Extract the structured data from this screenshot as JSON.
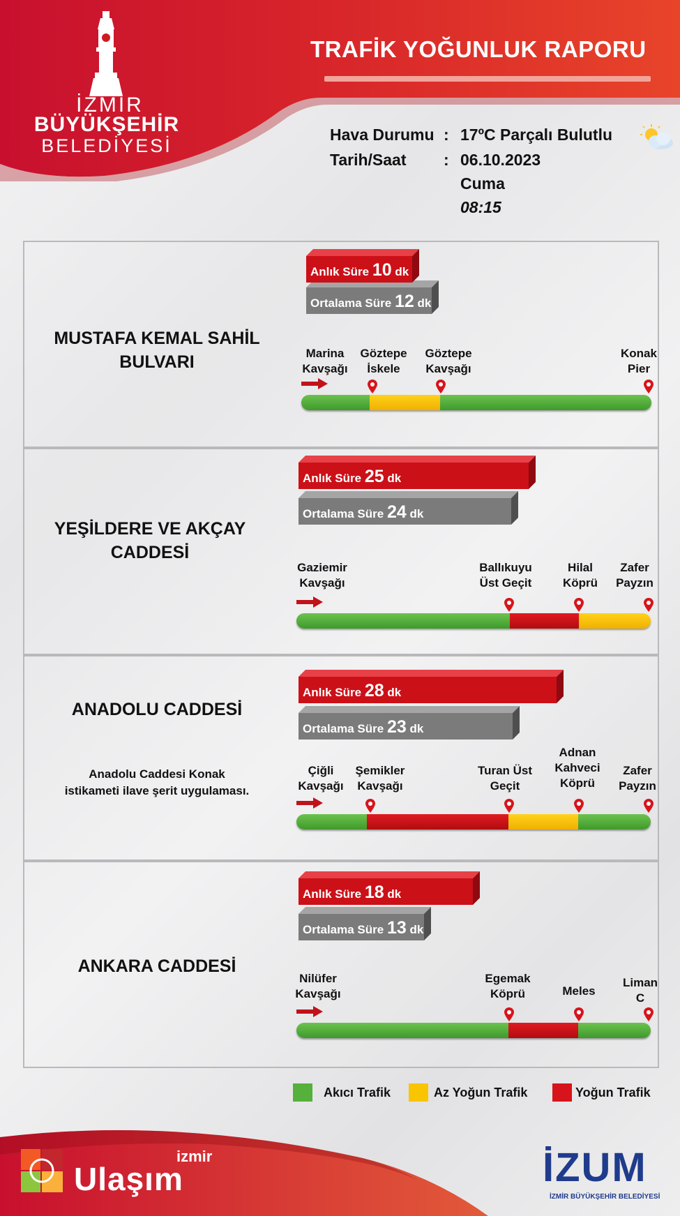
{
  "header": {
    "title": "TRAFİK YOĞUNLUK RAPORU",
    "logo_line1": "İZMİR",
    "logo_line2": "BÜYÜKŞEHİR",
    "logo_line3": "BELEDİYESİ",
    "weather_label": "Hava Durumu",
    "weather_sep": ":",
    "weather_value": "17ºC Parçalı Bulutlu",
    "weather_icon": "partly-cloudy-icon",
    "date_label": "Tarih/Saat",
    "date_sep": ":",
    "date_value": "06.10.2023",
    "day_value": "Cuma",
    "time_value": "08:15"
  },
  "labels": {
    "instant": "Anlık Süre",
    "average": "Ortalama Süre",
    "unit": "dk"
  },
  "roads": [
    {
      "name_line1": "MUSTAFA KEMAL SAHİL",
      "name_line2": "BULVARI",
      "note_line1": "",
      "note_line2": "",
      "instant_value": "10",
      "average_value": "12",
      "stops": [
        {
          "line1": "Marina",
          "line2": "Kavşağı"
        },
        {
          "line1": "Göztepe",
          "line2": "İskele"
        },
        {
          "line1": "Göztepe",
          "line2": "Kavşağı"
        },
        {
          "line1": "Konak",
          "line2": "Pier"
        }
      ],
      "segments": [
        "green",
        "yellow",
        "green"
      ]
    },
    {
      "name_line1": "YEŞİLDERE VE AKÇAY",
      "name_line2": "CADDESİ",
      "note_line1": "",
      "note_line2": "",
      "instant_value": "25",
      "average_value": "24",
      "stops": [
        {
          "line1": "Gaziemir",
          "line2": "Kavşağı"
        },
        {
          "line1": "Ballıkuyu",
          "line2": "Üst Geçit"
        },
        {
          "line1": "Hilal",
          "line2": "Köprü"
        },
        {
          "line1": "Zafer",
          "line2": "Payzın"
        }
      ],
      "segments": [
        "green",
        "red",
        "yellow"
      ]
    },
    {
      "name_line1": "ANADOLU CADDESİ",
      "name_line2": "",
      "note_line1": "Anadolu Caddesi Konak",
      "note_line2": "istikameti ilave şerit uygulaması.",
      "instant_value": "28",
      "average_value": "23",
      "stops": [
        {
          "line1": "Çiğli",
          "line2": "Kavşağı"
        },
        {
          "line1": "Şemikler",
          "line2": "Kavşağı"
        },
        {
          "line1": "Turan Üst",
          "line2": "Geçit"
        },
        {
          "line1": "Adnan",
          "line2": "Kahveci",
          "line3": "Köprü"
        },
        {
          "line1": "Zafer",
          "line2": "Payzın"
        }
      ],
      "segments": [
        "green",
        "red",
        "yellow",
        "green"
      ]
    },
    {
      "name_line1": "ANKARA CADDESİ",
      "name_line2": "",
      "note_line1": "",
      "note_line2": "",
      "instant_value": "18",
      "average_value": "13",
      "stops": [
        {
          "line1": "Nilüfer",
          "line2": "Kavşağı"
        },
        {
          "line1": "Egemak",
          "line2": "Köprü"
        },
        {
          "line1": "Meles",
          "line2": ""
        },
        {
          "line1": "Liman",
          "line2": "C"
        }
      ],
      "segments": [
        "green",
        "red",
        "green"
      ]
    }
  ],
  "legend": {
    "green_label": "Akıcı Trafik",
    "yellow_label": "Az Yoğun Trafik",
    "red_label": "Yoğun Trafik"
  },
  "footer": {
    "left_logo_small": "izmir",
    "left_logo_big": "Ulaşım",
    "right_logo_big": "İZUM",
    "right_logo_small": "İZMİR BÜYÜKŞEHİR BELEDİYESİ"
  },
  "colors": {
    "red": "#d7141b",
    "green": "#56b03c",
    "yellow": "#f9c400",
    "grey": "#7a7a7a"
  }
}
